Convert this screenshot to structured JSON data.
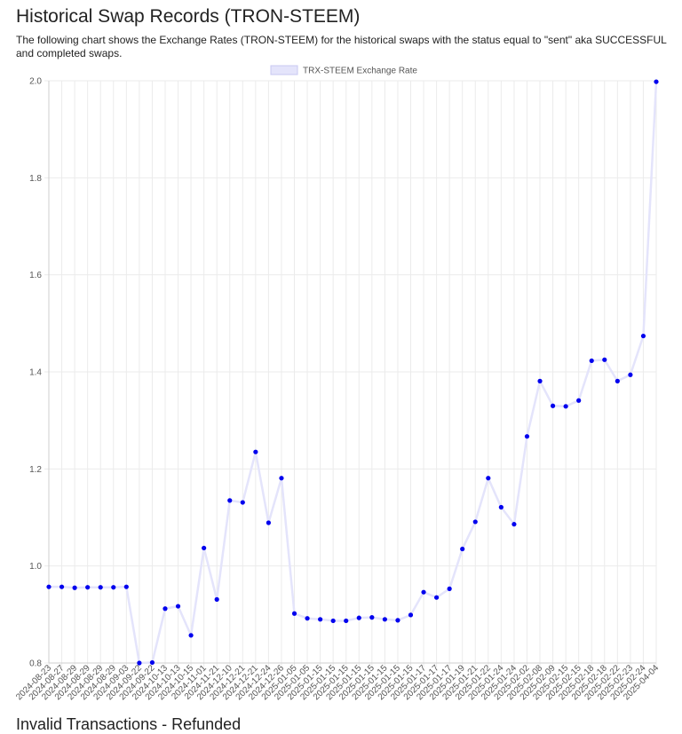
{
  "page": {
    "title": "Historical Swap Records (TRON-STEEM)",
    "description": "The following chart shows the Exchange Rates (TRON-STEEM) for the historical swaps with the status equal to \"sent\" aka SUCCESSFUL and completed swaps.",
    "next_heading": "Invalid Transactions - Refunded"
  },
  "chart_data": {
    "type": "line",
    "title": "",
    "xlabel": "",
    "ylabel": "",
    "ylim": [
      0.8,
      2.0
    ],
    "yticks": [
      0.8,
      1.0,
      1.2,
      1.4,
      1.6,
      1.8,
      2.0
    ],
    "grid": true,
    "legend_position": "top-center",
    "categories": [
      "2024-08-23",
      "2024-08-27",
      "2024-08-29",
      "2024-08-29",
      "2024-08-29",
      "2024-08-29",
      "2024-09-03",
      "2024-09-22",
      "2024-09-22",
      "2024-10-13",
      "2024-10-13",
      "2024-10-15",
      "2024-11-01",
      "2024-11-21",
      "2024-12-10",
      "2024-12-21",
      "2024-12-21",
      "2024-12-24",
      "2024-12-26",
      "2025-01-05",
      "2025-01-05",
      "2025-01-15",
      "2025-01-15",
      "2025-01-15",
      "2025-01-15",
      "2025-01-15",
      "2025-01-15",
      "2025-01-15",
      "2025-01-15",
      "2025-01-17",
      "2025-01-17",
      "2025-01-17",
      "2025-01-19",
      "2025-01-21",
      "2025-01-22",
      "2025-01-24",
      "2025-01-24",
      "2025-02-02",
      "2025-02-08",
      "2025-02-09",
      "2025-02-15",
      "2025-02-15",
      "2025-02-18",
      "2025-02-18",
      "2025-02-22",
      "2025-02-23",
      "2025-02-24",
      "2025-04-04"
    ],
    "series": [
      {
        "name": "TRX-STEEM Exchange Rate",
        "color": "#e4e4fb",
        "point_color": "#0000ee",
        "values": [
          0.957,
          0.957,
          0.955,
          0.956,
          0.956,
          0.956,
          0.957,
          0.8,
          0.801,
          0.912,
          0.917,
          0.857,
          1.037,
          0.931,
          1.135,
          1.131,
          1.235,
          1.089,
          1.181,
          0.902,
          0.892,
          0.89,
          0.887,
          0.887,
          0.893,
          0.894,
          0.89,
          0.888,
          0.899,
          0.946,
          0.935,
          0.953,
          1.035,
          1.091,
          1.181,
          1.121,
          1.086,
          1.267,
          1.381,
          1.33,
          1.329,
          1.341,
          1.423,
          1.425,
          1.381,
          1.394,
          1.474,
          1.998
        ]
      }
    ]
  }
}
